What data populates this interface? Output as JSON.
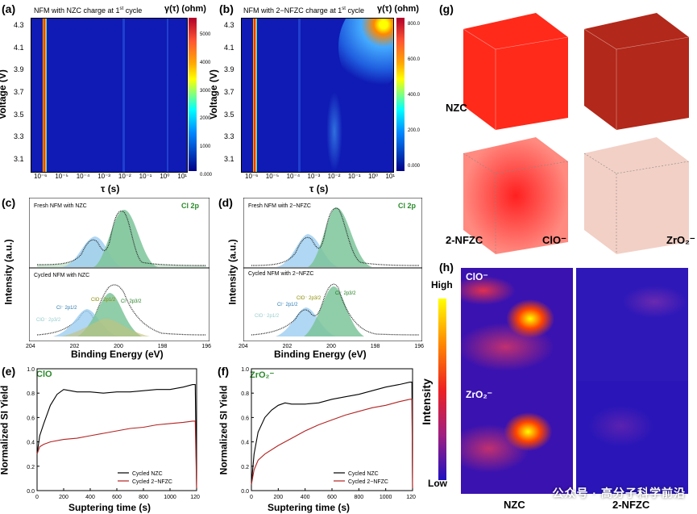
{
  "panels": {
    "a": {
      "label": "(a)",
      "title": "NFM with NZC charge at 1",
      "title_sup": "st",
      "title_tail": " cycle",
      "cbar_title": "γ(τ) (ohm)",
      "cbar_ticks": [
        "5000",
        "4000",
        "3000",
        "2000",
        "1000",
        "0.000"
      ]
    },
    "b": {
      "label": "(b)",
      "title": "NFM with 2−NFZC charge at 1",
      "title_sup": "st",
      "title_tail": " cycle",
      "cbar_title": "γ(τ) (ohm)",
      "cbar_ticks": [
        "800.0",
        "600.0",
        "400.0",
        "200.0",
        "0.000"
      ]
    },
    "c": {
      "label": "(c)",
      "top_title": "Fresh NFM with NZC",
      "top_right": "Cl 2p",
      "bot_title": "Cycled NFM with NZC",
      "peaks": [
        "ClO⁻ 2p1/2",
        "Cl⁻ 2p3/2",
        "Cl⁻ 2p1/2",
        "ClO⁻ 2p3/2"
      ]
    },
    "d": {
      "label": "(d)",
      "top_title": "Fresh NFM with 2−NFZC",
      "top_right": "Cl 2p",
      "bot_title": "Cycled NFM with 2−NFZC",
      "peaks": [
        "ClO⁻ 2p3/2",
        "Cl⁻ 2p3/2",
        "Cl⁻ 2p1/2",
        "ClO⁻ 2p1/2"
      ]
    },
    "e": {
      "label": "(e)",
      "species": "ClO",
      "legend": [
        "Cycled NZC",
        "Cycled 2−NFZC"
      ]
    },
    "f": {
      "label": "(f)",
      "species": "ZrO₂⁻",
      "legend": [
        "Cycled NZC",
        "Cycled 2−NFZC"
      ]
    },
    "g": {
      "label": "(g)",
      "row1": "NZC",
      "row2": "2-NFZC",
      "col3": "ClO⁻",
      "col4": "ZrO₂⁻"
    },
    "h": {
      "label": "(h)",
      "tl": "ClO⁻",
      "bl": "ZrO₂⁻",
      "high": "High",
      "low": "Low",
      "intensity": "Intensity",
      "col1": "NZC",
      "col2": "2-NFZC"
    }
  },
  "axes": {
    "voltage_label": "Voltage (V)",
    "voltage_ticks": [
      "4.3",
      "4.1",
      "3.9",
      "3.7",
      "3.5",
      "3.3",
      "3.1"
    ],
    "tau_label": "τ (s)",
    "tau_ticks": [
      "10⁻⁶",
      "10⁻⁵",
      "10⁻⁴",
      "10⁻³",
      "10⁻²",
      "10⁻¹",
      "10⁰",
      "10¹"
    ],
    "be_label": "Binding Energy (eV)",
    "be_ticks": [
      "204",
      "202",
      "200",
      "198",
      "196"
    ],
    "int_label": "Intensity (a.u.)",
    "si_label": "Normalized SI Yield",
    "si_ticks": [
      "0.0",
      "0.2",
      "0.4",
      "0.6",
      "0.8",
      "1.0"
    ],
    "time_label": "Suptering time (s)",
    "time_ticks": [
      "0",
      "200",
      "400",
      "600",
      "800",
      "1000",
      "1200"
    ]
  },
  "watermark": "公众号 · 高分子科学前沿",
  "chart_data": [
    {
      "type": "line",
      "title": "",
      "xlabel": "Suptering time (s)",
      "ylabel": "Normalized SI Yield",
      "xlim": [
        0,
        1200
      ],
      "ylim": [
        0,
        1.0
      ],
      "series": [
        {
          "name": "Cycled NZC",
          "color": "#000000",
          "x": [
            0,
            20,
            50,
            100,
            150,
            200,
            250,
            300,
            400,
            500,
            600,
            700,
            800,
            900,
            1000,
            1100,
            1170,
            1190,
            1200
          ],
          "y": [
            0.3,
            0.45,
            0.55,
            0.7,
            0.79,
            0.83,
            0.82,
            0.81,
            0.81,
            0.8,
            0.81,
            0.81,
            0.82,
            0.83,
            0.83,
            0.85,
            0.87,
            0.87,
            0.02
          ]
        },
        {
          "name": "Cycled 2−NFZC",
          "color": "#b22222",
          "x": [
            0,
            20,
            50,
            100,
            200,
            300,
            400,
            500,
            600,
            700,
            800,
            900,
            1000,
            1100,
            1170,
            1190,
            1200
          ],
          "y": [
            0.3,
            0.36,
            0.38,
            0.4,
            0.42,
            0.43,
            0.45,
            0.47,
            0.49,
            0.51,
            0.52,
            0.54,
            0.55,
            0.56,
            0.57,
            0.57,
            0.02
          ]
        }
      ]
    },
    {
      "type": "line",
      "title": "",
      "xlabel": "Suptering time (s)",
      "ylabel": "Normalized SI Yield",
      "xlim": [
        0,
        1200
      ],
      "ylim": [
        0,
        1.0
      ],
      "series": [
        {
          "name": "Cycled NZC",
          "color": "#000000",
          "x": [
            0,
            20,
            50,
            100,
            150,
            200,
            250,
            300,
            400,
            500,
            600,
            700,
            800,
            900,
            1000,
            1100,
            1180,
            1195,
            1200
          ],
          "y": [
            0.05,
            0.3,
            0.48,
            0.6,
            0.66,
            0.7,
            0.72,
            0.71,
            0.71,
            0.72,
            0.75,
            0.77,
            0.79,
            0.82,
            0.85,
            0.87,
            0.89,
            0.89,
            0.02
          ]
        },
        {
          "name": "Cycled 2−NFZC",
          "color": "#b22222",
          "x": [
            0,
            20,
            50,
            100,
            200,
            300,
            400,
            500,
            600,
            700,
            800,
            900,
            1000,
            1100,
            1180,
            1195,
            1200
          ],
          "y": [
            0.05,
            0.17,
            0.25,
            0.3,
            0.37,
            0.43,
            0.49,
            0.54,
            0.58,
            0.62,
            0.65,
            0.68,
            0.7,
            0.73,
            0.75,
            0.75,
            0.02
          ]
        }
      ]
    }
  ]
}
